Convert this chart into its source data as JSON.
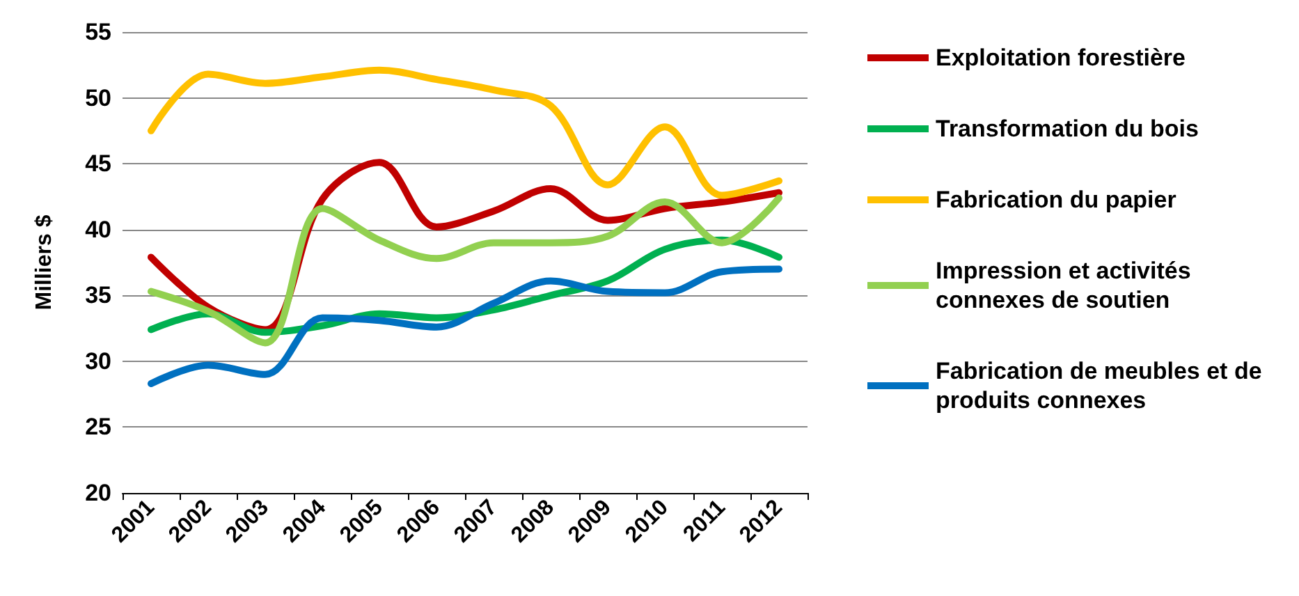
{
  "chart_data": {
    "type": "line",
    "ylabel": "Milliers $",
    "categories": [
      "2001",
      "2002",
      "2003",
      "2004",
      "2005",
      "2006",
      "2007",
      "2008",
      "2009",
      "2010",
      "2011",
      "2012"
    ],
    "series": [
      {
        "name": "Exploitation forestière",
        "color": "#c00000",
        "values": [
          37.9,
          34.1,
          32.4,
          42.3,
          45.1,
          40.2,
          41.4,
          43.1,
          40.7,
          41.6,
          42.1,
          42.8
        ]
      },
      {
        "name": "Transformation du bois",
        "color": "#00b050",
        "values": [
          32.4,
          33.6,
          32.2,
          32.7,
          33.6,
          33.3,
          33.9,
          35.0,
          36.1,
          38.5,
          39.2,
          37.9
        ]
      },
      {
        "name": "Fabrication du papier",
        "color": "#ffc000",
        "values": [
          47.5,
          51.8,
          51.1,
          51.6,
          52.1,
          51.4,
          50.6,
          49.4,
          43.4,
          47.8,
          42.6,
          43.7
        ]
      },
      {
        "name": "Impression et activités connexes de soutien",
        "color": "#92d050",
        "values": [
          35.3,
          33.8,
          31.4,
          41.6,
          39.2,
          37.8,
          39.0,
          39.0,
          39.5,
          42.1,
          39.0,
          42.4
        ]
      },
      {
        "name": "Fabrication de meubles et de produits connexes",
        "color": "#0070c0",
        "values": [
          28.3,
          29.7,
          29.0,
          33.3,
          33.1,
          32.6,
          34.4,
          36.1,
          35.3,
          35.2,
          36.8,
          37.0
        ]
      }
    ],
    "ylim": [
      20,
      55
    ],
    "yticks": [
      20,
      25,
      30,
      35,
      40,
      45,
      50,
      55
    ],
    "grid": "y",
    "legend": "right",
    "marker": "none",
    "line_style": "solid"
  }
}
